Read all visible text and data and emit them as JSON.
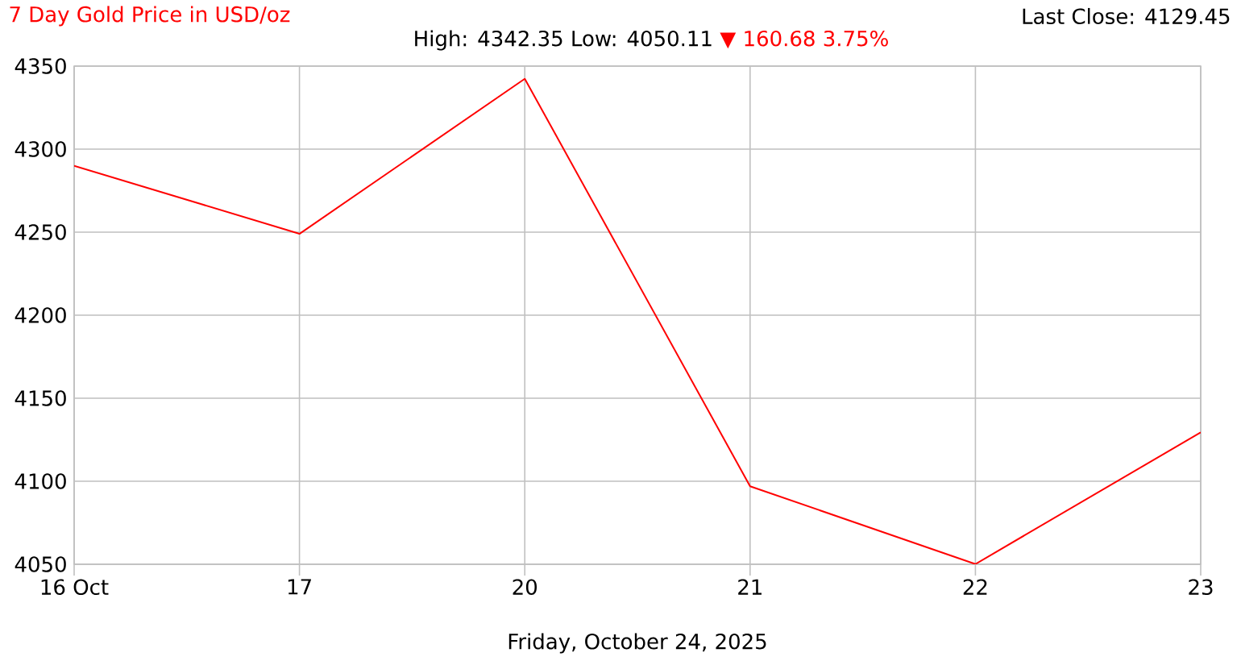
{
  "chart_data": {
    "type": "line",
    "title": "7 Day Gold Price in USD/oz",
    "subtitle": "High: 4342.35 Low: 4050.11",
    "xlabel": "Friday, October 24, 2025",
    "annotations": [
      "▼ 160.68 3.75%",
      "Last Close: 4129.45"
    ],
    "categories": [
      "16 Oct",
      "17",
      "20",
      "21",
      "22",
      "23"
    ],
    "series": [
      {
        "color": "#ff0000",
        "values": [
          4290,
          4249,
          4342.35,
          4097,
          4050.11,
          4129.45
        ]
      }
    ],
    "ylim": [
      4050,
      4350
    ],
    "yticks": [
      4050,
      4100,
      4150,
      4200,
      4250,
      4300,
      4350
    ],
    "grid": true,
    "marker": "none",
    "line_style": "solid"
  }
}
